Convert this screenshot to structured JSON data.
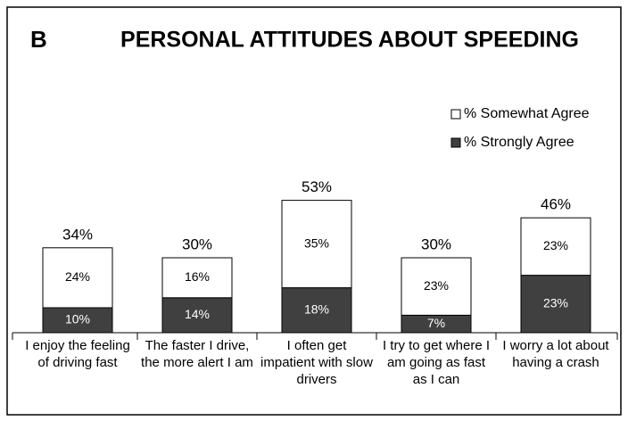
{
  "chart_data": {
    "type": "stacked_bar",
    "panel_label": "B",
    "title": "PERSONAL ATTITUDES ABOUT SPEEDING",
    "categories": [
      "I enjoy the feeling of driving fast",
      "The faster I drive, the more alert I am",
      "I often get impatient with slow drivers",
      "I try to get where I am going as fast as I can",
      "I worry a lot about having a crash"
    ],
    "series": [
      {
        "name": "% Strongly Agree",
        "color": "#404040",
        "values": [
          10,
          14,
          18,
          7,
          23
        ],
        "value_labels": [
          "10%",
          "14%",
          "18%",
          "7%",
          "23%"
        ]
      },
      {
        "name": "% Somewhat Agree",
        "color": "#ffffff",
        "values": [
          24,
          16,
          35,
          23,
          23
        ],
        "value_labels": [
          "24%",
          "16%",
          "35%",
          "23%",
          "23%"
        ]
      }
    ],
    "totals": [
      34,
      30,
      53,
      30,
      46
    ],
    "total_labels": [
      "34%",
      "30%",
      "53%",
      "30%",
      "46%"
    ],
    "legend": "upper right"
  }
}
